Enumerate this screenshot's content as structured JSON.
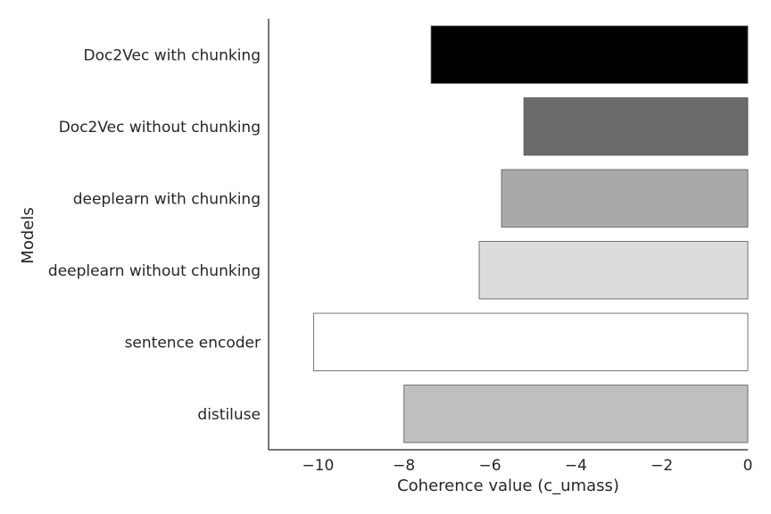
{
  "chart_data": {
    "type": "bar",
    "orientation": "horizontal",
    "categories": [
      "Doc2Vec with chunking",
      "Doc2Vec without chunking",
      "deeplearn with chunking",
      "deeplearn without chunking",
      "sentence encoder",
      "distiluse"
    ],
    "values": [
      -7.37,
      -5.21,
      -5.73,
      -6.25,
      -10.1,
      -8.0
    ],
    "colors": [
      "#000000",
      "#6b6b6b",
      "#a9a9a9",
      "#dcdcdc",
      "#ffffff",
      "#bfbfbf"
    ],
    "title": "",
    "xlabel": "Coherence value (c_umass)",
    "ylabel": "Models",
    "xlim": [
      -11.15,
      0
    ],
    "xticks": [
      -10,
      -8,
      -6,
      -4,
      -2,
      0
    ],
    "xtick_labels": [
      "−10",
      "−8",
      "−6",
      "−4",
      "−2",
      "0"
    ],
    "grid": false,
    "legend": "none"
  }
}
